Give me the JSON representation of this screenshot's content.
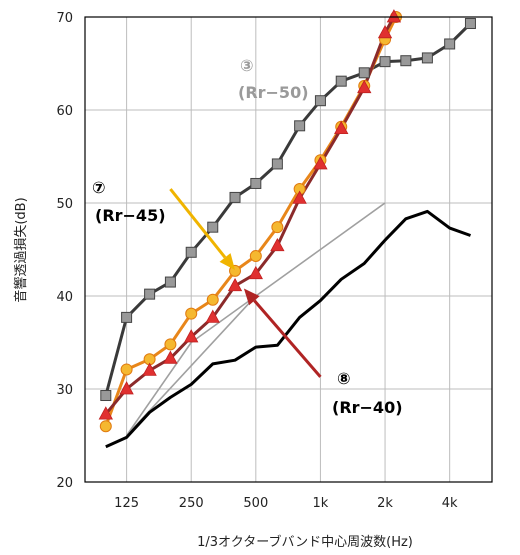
{
  "chart_data": {
    "type": "line",
    "xlabel": "1/3オクターブバンド中心周波数(Hz)",
    "ylabel": "音響透過損失(dB)",
    "ylim": [
      20,
      70
    ],
    "yticks": [
      20,
      30,
      40,
      50,
      60,
      70
    ],
    "x_tick_labels": [
      "125",
      "250",
      "500",
      "1k",
      "2k",
      "4k"
    ],
    "x_tick_positions": [
      125,
      250,
      500,
      1000,
      2000,
      4000
    ],
    "x_range": [
      80,
      6300
    ],
    "grid": true,
    "series": [
      {
        "id": "gray_squares",
        "color": "#3a3a3a",
        "marker": "square",
        "marker_fill": "#999999",
        "x": [
          100,
          125,
          160,
          200,
          250,
          315,
          400,
          500,
          630,
          800,
          1000,
          1250,
          1600,
          2000,
          2500,
          3150,
          4000,
          5000
        ],
        "y": [
          29.3,
          37.7,
          40.2,
          41.5,
          44.7,
          47.4,
          50.6,
          52.1,
          54.2,
          58.3,
          61.0,
          63.1,
          64.0,
          65.2,
          65.3,
          65.6,
          67.1,
          69.3
        ]
      },
      {
        "id": "orange_circles",
        "color": "#e8861a",
        "marker": "circle",
        "marker_fill": "#f5b830",
        "x": [
          100,
          125,
          160,
          200,
          250,
          315,
          400,
          500,
          630,
          800,
          1000,
          1250,
          1600,
          2000,
          2250
        ],
        "y": [
          26.0,
          32.1,
          33.2,
          34.8,
          38.1,
          39.6,
          42.7,
          44.3,
          47.4,
          51.5,
          54.6,
          58.2,
          62.6,
          67.6,
          70.0
        ]
      },
      {
        "id": "red_triangles",
        "color": "#8b2a2a",
        "marker": "triangle",
        "marker_fill": "#e03030",
        "x": [
          100,
          125,
          160,
          200,
          250,
          315,
          400,
          500,
          630,
          800,
          1000,
          1250,
          1600,
          2000,
          2200
        ],
        "y": [
          27.3,
          30.0,
          32.0,
          33.3,
          35.6,
          37.7,
          41.1,
          42.4,
          45.4,
          50.5,
          54.2,
          58.0,
          62.4,
          68.3,
          70.0
        ]
      },
      {
        "id": "black_line",
        "color": "#000000",
        "marker": "none",
        "x": [
          100,
          125,
          160,
          200,
          250,
          315,
          400,
          500,
          630,
          800,
          1000,
          1250,
          1600,
          2000,
          2500,
          3150,
          4000,
          5000
        ],
        "y": [
          23.8,
          24.8,
          27.5,
          29.1,
          30.5,
          32.7,
          33.1,
          34.5,
          34.7,
          37.7,
          39.5,
          41.8,
          43.5,
          46.0,
          48.3,
          49.1,
          47.3,
          46.5
        ]
      },
      {
        "id": "rr50_ref",
        "color": "#a0a0a0",
        "marker": "none",
        "x": [
          125,
          250,
          500,
          1000,
          2000
        ],
        "y": [
          25,
          35,
          40,
          45,
          50
        ]
      },
      {
        "id": "rr45_ref",
        "color": "#a0a0a0",
        "marker": "none",
        "x": [
          125,
          500
        ],
        "y": [
          25,
          40
        ]
      }
    ],
    "annotations": [
      {
        "id": "a3",
        "number": "③",
        "label": "(Rr−50)",
        "color": "#9a9a9a"
      },
      {
        "id": "a7",
        "number": "⑦",
        "label": "(Rr−45)",
        "color": "#000000"
      },
      {
        "id": "a8",
        "number": "⑧",
        "label": "(Rr−40)",
        "color": "#000000"
      }
    ],
    "arrows": [
      {
        "id": "arrow7",
        "color": "#f0b400",
        "from": [
          200,
          51.5
        ],
        "to": [
          400,
          42.8
        ]
      },
      {
        "id": "arrow8",
        "color": "#b02424",
        "from": [
          1000,
          31.3
        ],
        "to": [
          440,
          40.8
        ]
      }
    ]
  }
}
